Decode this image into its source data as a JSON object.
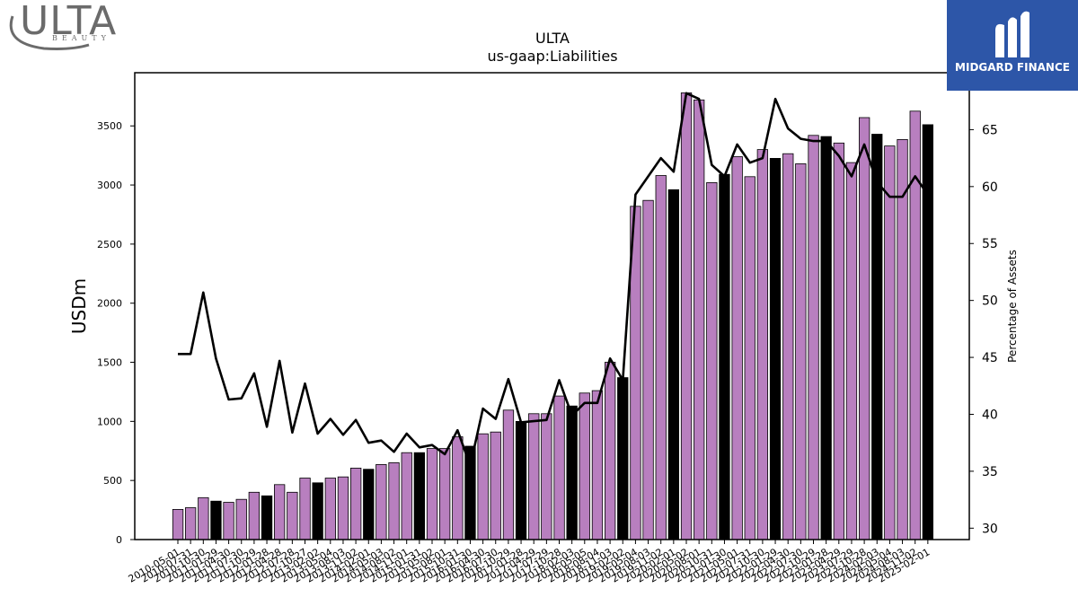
{
  "logos": {
    "left_brand": "ULTA",
    "left_sub": "BEAUTY",
    "left_icon": "ulta-swoosh-icon",
    "right_name": "MIDGARD FINANCE",
    "right_icon": "midgard-mark-icon",
    "right_bg": "#2d56a8"
  },
  "chart_data": {
    "type": "bar",
    "title": "ULTA",
    "subtitle": "us-gaap:Liabilities",
    "ylabel": "USDm",
    "y2label": "Percentage of Assets",
    "ylim": [
      0,
      3950
    ],
    "y2lim": [
      29,
      70
    ],
    "yticks": [
      0,
      500,
      1000,
      1500,
      2000,
      2500,
      3000,
      3500
    ],
    "y2ticks": [
      30,
      35,
      40,
      45,
      50,
      55,
      60,
      65
    ],
    "colors": {
      "quarter": "#b87fbf",
      "fiscal_year": "#000000",
      "line": "#000000"
    },
    "categories": [
      "2010-05-01",
      "2010-07-31",
      "2010-10-30",
      "2011-01-29",
      "2011-04-30",
      "2011-07-30",
      "2011-10-29",
      "2012-01-28",
      "2012-04-28",
      "2012-07-28",
      "2012-10-27",
      "2013-02-02",
      "2013-05-04",
      "2013-08-03",
      "2013-11-02",
      "2014-02-01",
      "2014-05-03",
      "2014-08-02",
      "2014-11-01",
      "2015-01-31",
      "2015-05-02",
      "2015-08-01",
      "2015-10-31",
      "2016-01-30",
      "2016-04-30",
      "2016-07-30",
      "2016-10-29",
      "2017-01-28",
      "2017-04-29",
      "2017-07-29",
      "2017-10-28",
      "2018-02-03",
      "2018-05-05",
      "2018-08-04",
      "2018-11-03",
      "2019-02-02",
      "2019-05-04",
      "2019-08-03",
      "2019-11-02",
      "2020-02-01",
      "2020-05-02",
      "2020-08-01",
      "2020-10-31",
      "2021-01-30",
      "2021-05-01",
      "2021-07-31",
      "2021-10-30",
      "2022-01-29",
      "2022-04-30",
      "2022-07-30",
      "2022-10-29",
      "2023-01-28",
      "2023-04-29",
      "2023-07-29",
      "2023-10-28",
      "2024-02-03",
      "2024-05-04",
      "2024-08-03",
      "2024-11-02",
      "2025-02-01"
    ],
    "values": [
      255,
      270,
      355,
      325,
      315,
      340,
      400,
      370,
      465,
      400,
      520,
      480,
      520,
      530,
      605,
      595,
      635,
      650,
      735,
      735,
      770,
      770,
      870,
      790,
      895,
      910,
      1095,
      1000,
      1065,
      1065,
      1215,
      1130,
      1240,
      1260,
      1500,
      1370,
      2820,
      2870,
      3080,
      2960,
      3780,
      3720,
      3020,
      3090,
      3240,
      3070,
      3300,
      3225,
      3265,
      3180,
      3420,
      3410,
      3355,
      3190,
      3570,
      3430,
      3330,
      3385,
      3625,
      3510
    ],
    "fiscal_year_end": [
      false,
      false,
      false,
      true,
      false,
      false,
      false,
      true,
      false,
      false,
      false,
      true,
      false,
      false,
      false,
      true,
      false,
      false,
      false,
      true,
      false,
      false,
      false,
      true,
      false,
      false,
      false,
      true,
      false,
      false,
      false,
      true,
      false,
      false,
      false,
      true,
      false,
      false,
      false,
      true,
      false,
      false,
      false,
      true,
      false,
      false,
      false,
      true,
      false,
      false,
      false,
      true,
      false,
      false,
      false,
      true,
      false,
      false,
      false,
      true
    ],
    "series": [
      {
        "values": [
          45.3,
          45.3,
          50.7,
          44.9,
          41.3,
          41.4,
          43.6,
          38.9,
          44.7,
          38.4,
          42.7,
          38.3,
          39.6,
          38.2,
          39.5,
          37.5,
          37.7,
          36.7,
          38.3,
          37.1,
          37.3,
          36.5,
          38.6,
          35.5,
          40.5,
          39.6,
          43.1,
          39.3,
          39.4,
          39.5,
          43.0,
          39.9,
          41.0,
          41.0,
          44.9,
          43.0,
          59.3,
          60.9,
          62.5,
          61.3,
          68.2,
          67.7,
          61.9,
          60.9,
          63.7,
          62.1,
          62.5,
          67.7,
          65.1,
          64.2,
          64.0,
          64.0,
          62.7,
          60.9,
          63.7,
          60.4,
          59.1,
          59.1,
          60.9,
          59.3
        ]
      }
    ],
    "grid": false
  }
}
